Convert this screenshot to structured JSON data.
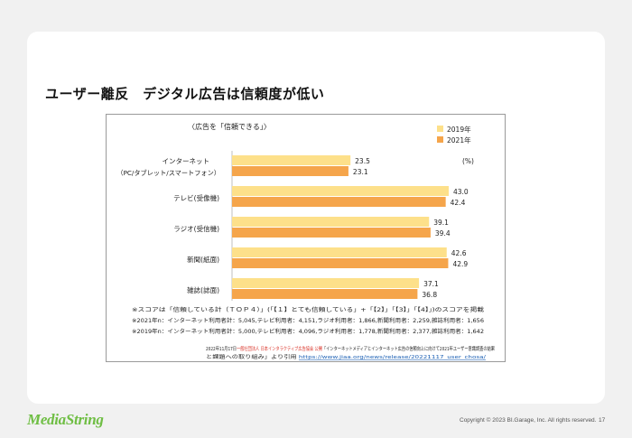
{
  "page": {
    "title": "ユーザー離反　デジタル広告は信頼度が低い",
    "copyright": "Copyright © 2023 BI.Garage, Inc. All rights reserved.",
    "page_number": "17",
    "logo_text": "MediaString",
    "colors": {
      "series_2019": "#fde08a",
      "series_2021": "#f5a54b",
      "accent_link": "#1a5fb4",
      "source_red": "#d93025",
      "logo_green": "#6fbe44"
    }
  },
  "chart_data": {
    "type": "bar",
    "orientation": "horizontal",
    "title": "〈広告を「信頼できる」〉",
    "unit_label": "(%)",
    "categories": [
      {
        "label": "インターネット",
        "sublabel": "（PC/タブレット/スマートフォン）"
      },
      {
        "label": "テレビ(受像機)"
      },
      {
        "label": "ラジオ(受信機)"
      },
      {
        "label": "新聞(紙面)"
      },
      {
        "label": "雑誌(誌面)"
      }
    ],
    "series": [
      {
        "name": "2019年",
        "values": [
          23.5,
          43.0,
          39.1,
          42.6,
          37.1
        ]
      },
      {
        "name": "2021年",
        "values": [
          23.1,
          42.4,
          39.4,
          42.9,
          36.8
        ]
      }
    ],
    "value_labels": [
      [
        "23.5",
        "43.0",
        "39.1",
        "42.6",
        "37.1"
      ],
      [
        "23.1",
        "42.4",
        "39.4",
        "42.9",
        "36.8"
      ]
    ],
    "xlim": [
      0,
      45
    ],
    "notes": [
      "※スコアは「信頼している計（ＴＯＰ４）」(「【１】とても信頼している」+「【2】」「【3】」「【4】」)のスコアを掲載",
      "※2021年n：インターネット利用者計：5,045,テレビ利用者：4,151,ラジオ利用者：1,866,新聞利用者：2,259,雑誌利用者：1,656",
      "※2019年n：インターネット利用者計：5,000,テレビ利用者：4,096,ラジオ利用者：1,778,新聞利用者：2,377,雑誌利用者：1,642"
    ],
    "source": {
      "date": "2022年11月17日",
      "org": "一般社団法人 日本インタラクティブ広告協会 公開",
      "doc_title": "「インターネットメディアとインターネット広告の信頼向上に向けて2021年ユーザー意識調査の結果と課題への取り組み」より引用",
      "url": "https://www.jiaa.org/news/release/20221117_user_chosa/"
    }
  }
}
